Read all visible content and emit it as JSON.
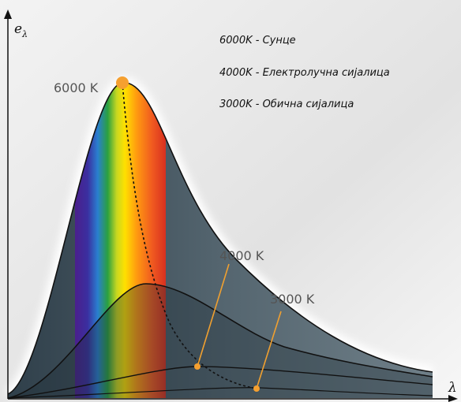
{
  "axes": {
    "y_label": {
      "symbol": "e",
      "subscript": "λ"
    },
    "x_label": "λ"
  },
  "curves": [
    {
      "label": "6000 K"
    },
    {
      "label": "4000 K"
    },
    {
      "label": "3000 K"
    }
  ],
  "legend": [
    "6000K - Сунце",
    "4000K - Електролучна сијалица",
    "3000K - Обична сијалица"
  ]
}
